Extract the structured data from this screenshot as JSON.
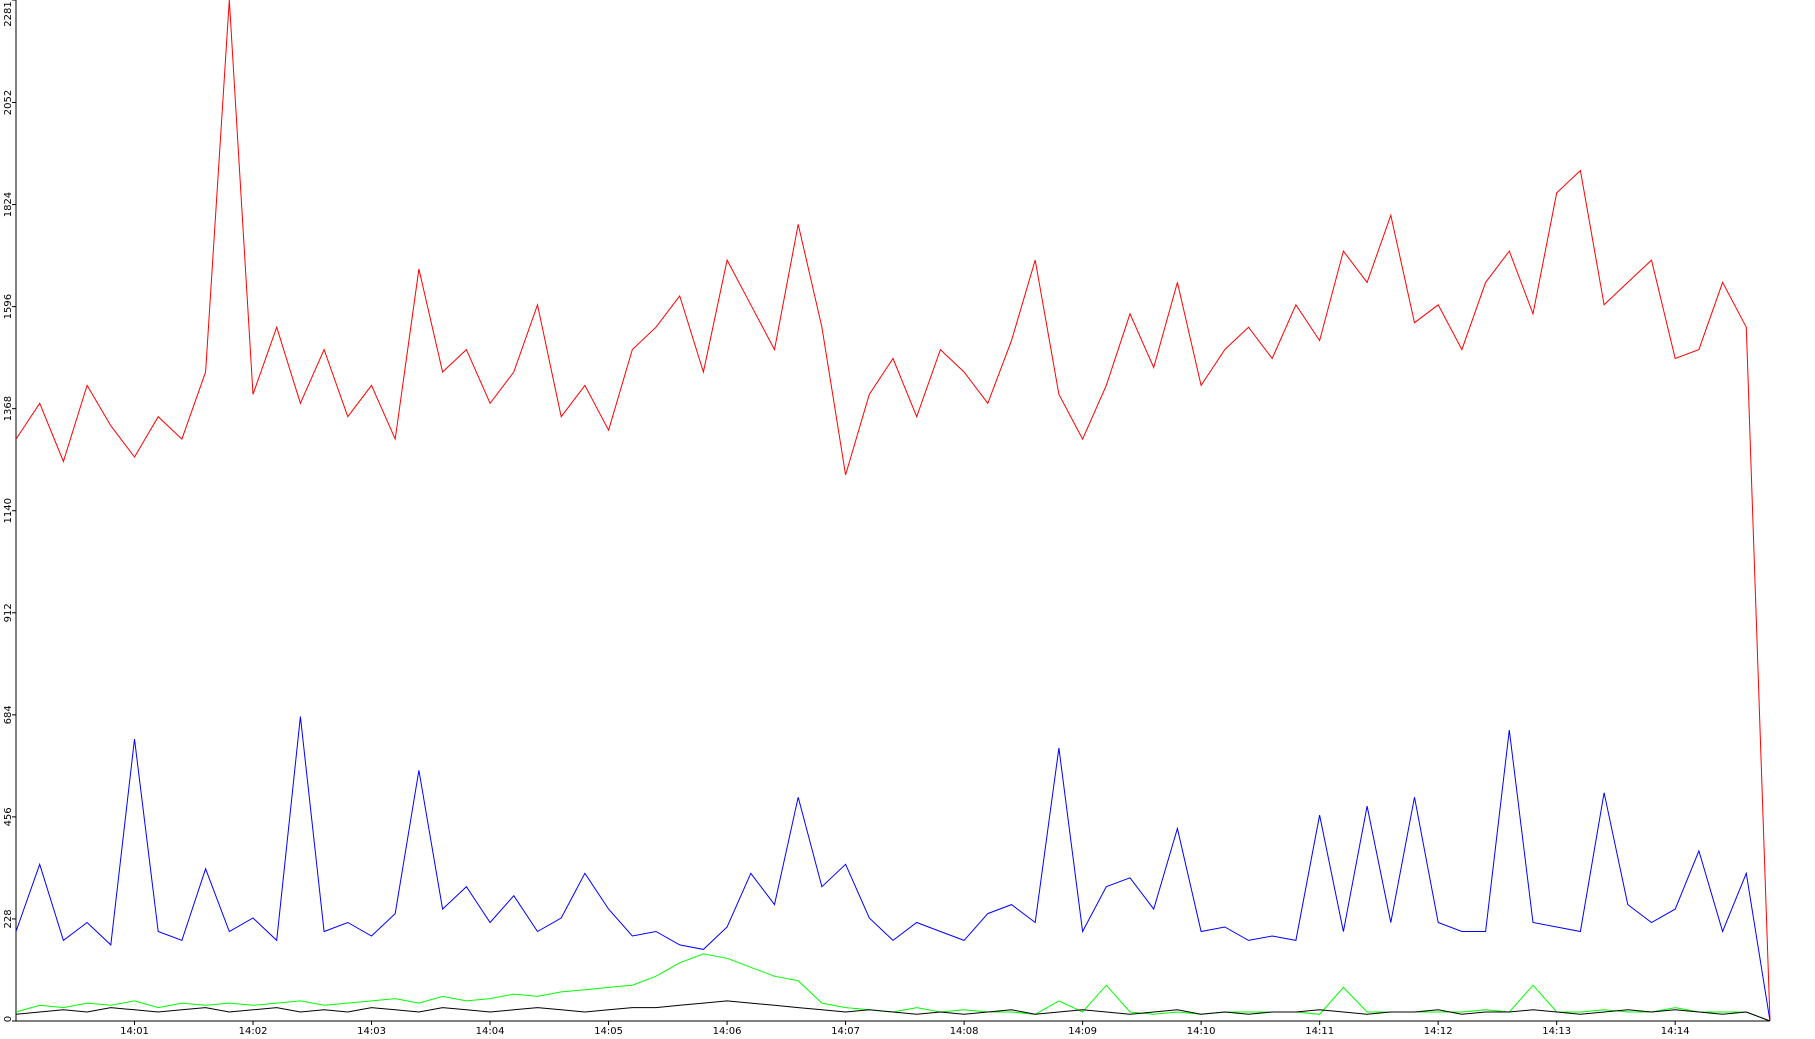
{
  "chart_data": {
    "type": "line",
    "categories": [
      null,
      null,
      null,
      null,
      null,
      "14:01",
      null,
      null,
      null,
      null,
      "14:02",
      null,
      null,
      null,
      null,
      "14:03",
      null,
      null,
      null,
      null,
      "14:04",
      null,
      null,
      null,
      null,
      "14:05",
      null,
      null,
      null,
      null,
      "14:06",
      null,
      null,
      null,
      null,
      "14:07",
      null,
      null,
      null,
      null,
      "14:08",
      null,
      null,
      null,
      null,
      "14:09",
      null,
      null,
      null,
      null,
      "14:10",
      null,
      null,
      null,
      null,
      "14:11",
      null,
      null,
      null,
      null,
      "14:12",
      null,
      null,
      null,
      null,
      "14:13",
      null,
      null,
      null,
      null,
      "14:14",
      null,
      null,
      null,
      null
    ],
    "series": [
      {
        "color": "#ff0000",
        "values": [
          1300,
          1380,
          1250,
          1420,
          1330,
          1260,
          1350,
          1300,
          1450,
          2281,
          1400,
          1550,
          1380,
          1500,
          1350,
          1420,
          1300,
          1680,
          1450,
          1500,
          1380,
          1450,
          1600,
          1350,
          1420,
          1320,
          1500,
          1550,
          1620,
          1450,
          1700,
          1600,
          1500,
          1780,
          1550,
          1220,
          1400,
          1480,
          1350,
          1500,
          1450,
          1380,
          1520,
          1700,
          1400,
          1300,
          1420,
          1580,
          1460,
          1650,
          1420,
          1500,
          1550,
          1480,
          1600,
          1520,
          1720,
          1650,
          1800,
          1560,
          1600,
          1500,
          1650,
          1720,
          1580,
          1850,
          1900,
          1600,
          1650,
          1700,
          1480,
          1500,
          1650,
          1550,
          0
        ]
      },
      {
        "color": "#0000ff",
        "values": [
          200,
          350,
          180,
          220,
          170,
          630,
          200,
          180,
          340,
          200,
          230,
          180,
          680,
          200,
          220,
          190,
          240,
          560,
          250,
          300,
          220,
          280,
          200,
          230,
          330,
          250,
          190,
          200,
          170,
          160,
          210,
          330,
          260,
          500,
          300,
          350,
          230,
          180,
          220,
          200,
          180,
          240,
          260,
          220,
          610,
          200,
          300,
          320,
          250,
          430,
          200,
          210,
          180,
          190,
          180,
          460,
          200,
          480,
          220,
          500,
          220,
          200,
          200,
          650,
          220,
          210,
          200,
          510,
          260,
          220,
          250,
          380,
          200,
          330,
          0
        ]
      },
      {
        "color": "#00ff00",
        "values": [
          20,
          35,
          30,
          40,
          35,
          45,
          30,
          40,
          35,
          40,
          35,
          40,
          45,
          35,
          40,
          45,
          50,
          40,
          55,
          45,
          50,
          60,
          55,
          65,
          70,
          75,
          80,
          100,
          130,
          150,
          140,
          120,
          100,
          90,
          40,
          30,
          25,
          20,
          30,
          20,
          25,
          20,
          20,
          15,
          45,
          20,
          80,
          20,
          15,
          20,
          15,
          20,
          20,
          20,
          20,
          15,
          75,
          20,
          20,
          20,
          20,
          20,
          25,
          20,
          80,
          20,
          20,
          25,
          20,
          20,
          30,
          20,
          20,
          20,
          0
        ]
      },
      {
        "color": "#000000",
        "values": [
          15,
          20,
          25,
          20,
          30,
          25,
          20,
          25,
          30,
          20,
          25,
          30,
          20,
          25,
          20,
          30,
          25,
          20,
          30,
          25,
          20,
          25,
          30,
          25,
          20,
          25,
          30,
          30,
          35,
          40,
          45,
          40,
          35,
          30,
          25,
          20,
          25,
          20,
          15,
          20,
          15,
          20,
          25,
          15,
          20,
          25,
          20,
          15,
          20,
          25,
          15,
          20,
          15,
          20,
          20,
          25,
          20,
          15,
          20,
          20,
          25,
          15,
          20,
          20,
          25,
          20,
          15,
          20,
          25,
          20,
          25,
          20,
          15,
          20,
          0
        ]
      }
    ],
    "ylim": [
      0,
      2281
    ],
    "yticks": [
      0,
      228,
      456,
      684,
      912,
      1140,
      1368,
      1596,
      1824,
      2052,
      2281
    ]
  }
}
